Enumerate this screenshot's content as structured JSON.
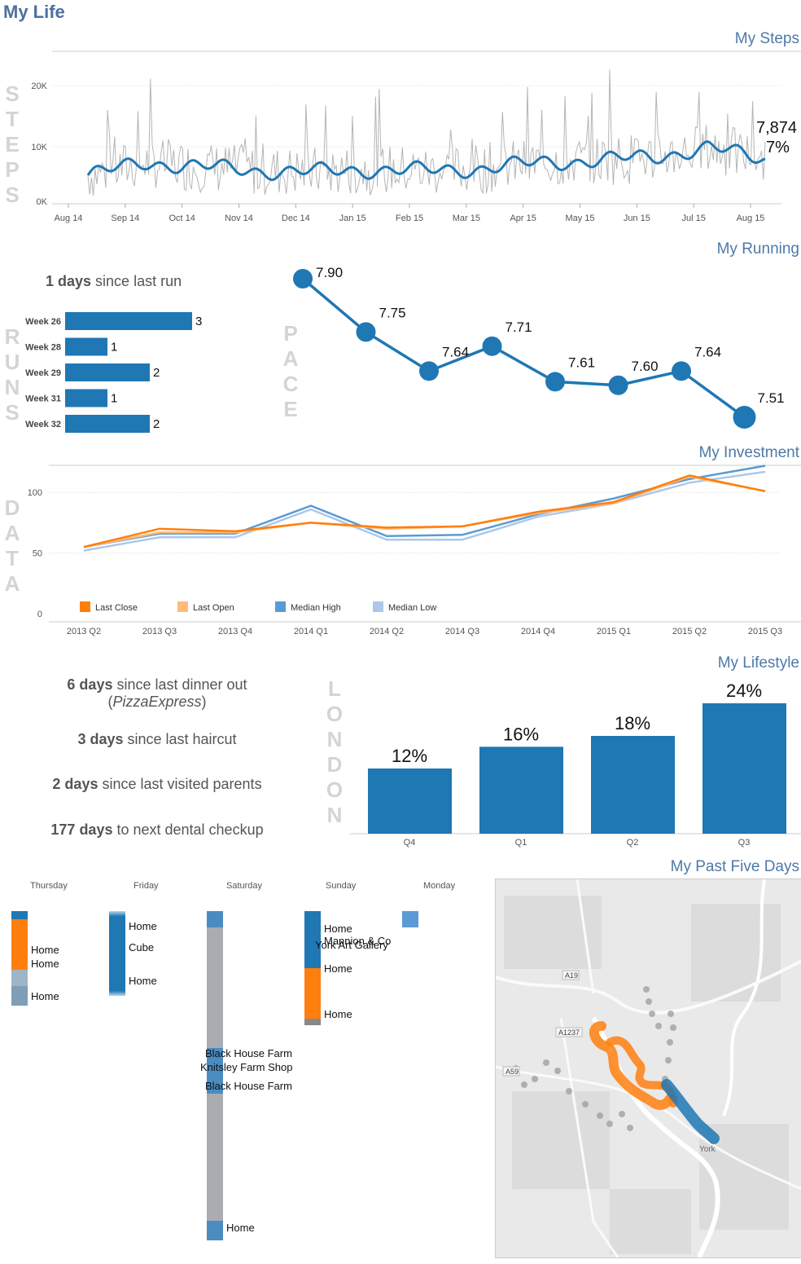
{
  "dashboard": {
    "title": "My Life"
  },
  "steps": {
    "title": "My Steps",
    "side_label": "STEPS",
    "last_value": "7,874",
    "last_change": "7%",
    "y_ticks": [
      "20K",
      "10K",
      "0K"
    ],
    "x_ticks": [
      "Aug 14",
      "Sep 14",
      "Oct 14",
      "Nov 14",
      "Dec 14",
      "Jan 15",
      "Feb 15",
      "Mar 15",
      "Apr 15",
      "May 15",
      "Jun 15",
      "Jul 15",
      "Aug 15"
    ],
    "colors": {
      "raw": "#b5b5b5",
      "smooth": "#1f77b4"
    }
  },
  "running": {
    "title": "My Running",
    "days_since": "1 days",
    "days_since_suffix": " since last run",
    "side_label": "RUNS",
    "pace_label": "PACE",
    "color": "#1f77b4"
  },
  "investment": {
    "title": "My Investment",
    "side_label": "DATA",
    "y_ticks": [
      "100",
      "50",
      "0"
    ],
    "legend": [
      {
        "name": "Last Close",
        "color": "#ff7f0e"
      },
      {
        "name": "Last Open",
        "color": "#ffbb78"
      },
      {
        "name": "Median High",
        "color": "#5a9bd5"
      },
      {
        "name": "Median Low",
        "color": "#aec7e8"
      }
    ]
  },
  "lifestyle": {
    "title": "My Lifestyle",
    "side_label": "LONDON",
    "stats": [
      {
        "bold": "6 days",
        "text": " since last dinner out",
        "sub": "PizzaExpress"
      },
      {
        "bold": "3 days",
        "text": " since last haircut"
      },
      {
        "bold": "2 days",
        "text": " since last visited parents"
      },
      {
        "bold": "177 days",
        "text": " to next dental checkup"
      }
    ]
  },
  "past_days": {
    "title": "My Past Five Days",
    "days": [
      "Thursday",
      "Friday",
      "Saturday",
      "Sunday",
      "Monday"
    ],
    "places": {
      "thu": [
        "Home",
        "Home",
        "Home"
      ],
      "fri": [
        "Home",
        "Cube",
        "Home"
      ],
      "sat": [
        "Black House Farm",
        "Knitsley Farm Shop",
        "Black House Farm",
        "Home"
      ],
      "sun": [
        "Home",
        "Mannion & Co",
        "York Art Gallery",
        "Home",
        "Home"
      ]
    },
    "map": {
      "labels": [
        "A19",
        "A1237",
        "A59",
        "York"
      ]
    }
  },
  "chart_data": [
    {
      "type": "line",
      "title": "My Steps",
      "x": [
        "Aug 14",
        "Sep 14",
        "Oct 14",
        "Nov 14",
        "Dec 14",
        "Jan 15",
        "Feb 15",
        "Mar 15",
        "Apr 15",
        "May 15",
        "Jun 15",
        "Jul 15",
        "Aug 15"
      ],
      "series": [
        {
          "values": [
            5000,
            7200,
            6500,
            5800,
            5600,
            6000,
            5800,
            6200,
            7200,
            7600,
            8200,
            9800,
            7874
          ]
        }
      ],
      "ylim": [
        0,
        25000
      ],
      "last_value": 7874,
      "last_change_pct": 7
    },
    {
      "type": "bar",
      "categories": [
        "Week 26",
        "Week 28",
        "Week 29",
        "Week 31",
        "Week 32"
      ],
      "values": [
        3,
        1,
        2,
        1,
        2
      ],
      "ylabel": "RUNS"
    },
    {
      "type": "line",
      "values": [
        7.9,
        7.75,
        7.64,
        7.71,
        7.61,
        7.6,
        7.64,
        7.51
      ],
      "ylabel": "PACE"
    },
    {
      "type": "line",
      "title": "My Investment",
      "categories": [
        "2013 Q2",
        "2013 Q3",
        "2013 Q4",
        "2014 Q1",
        "2014 Q2",
        "2014 Q3",
        "2014 Q4",
        "2015 Q1",
        "2015 Q2",
        "2015 Q3"
      ],
      "series": [
        {
          "name": "Last Close",
          "values": [
            55,
            70,
            68,
            75,
            71,
            72,
            84,
            92,
            114,
            101
          ]
        },
        {
          "name": "Last Open",
          "values": [
            55,
            67,
            67,
            75,
            70,
            72,
            83,
            91,
            113,
            101
          ]
        },
        {
          "name": "Median High",
          "values": [
            55,
            66,
            66,
            89,
            64,
            65,
            82,
            95,
            111,
            122
          ]
        },
        {
          "name": "Median Low",
          "values": [
            52,
            63,
            63,
            86,
            61,
            61,
            80,
            91,
            108,
            117
          ]
        }
      ],
      "ylim": [
        0,
        125
      ],
      "legend": "bottom-left"
    },
    {
      "type": "bar",
      "title": "My Lifestyle",
      "categories": [
        "Q4",
        "Q1",
        "Q2",
        "Q3"
      ],
      "values": [
        12,
        16,
        18,
        24
      ],
      "labels": [
        "12%",
        "16%",
        "18%",
        "24%"
      ],
      "ylabel": "LONDON"
    }
  ]
}
